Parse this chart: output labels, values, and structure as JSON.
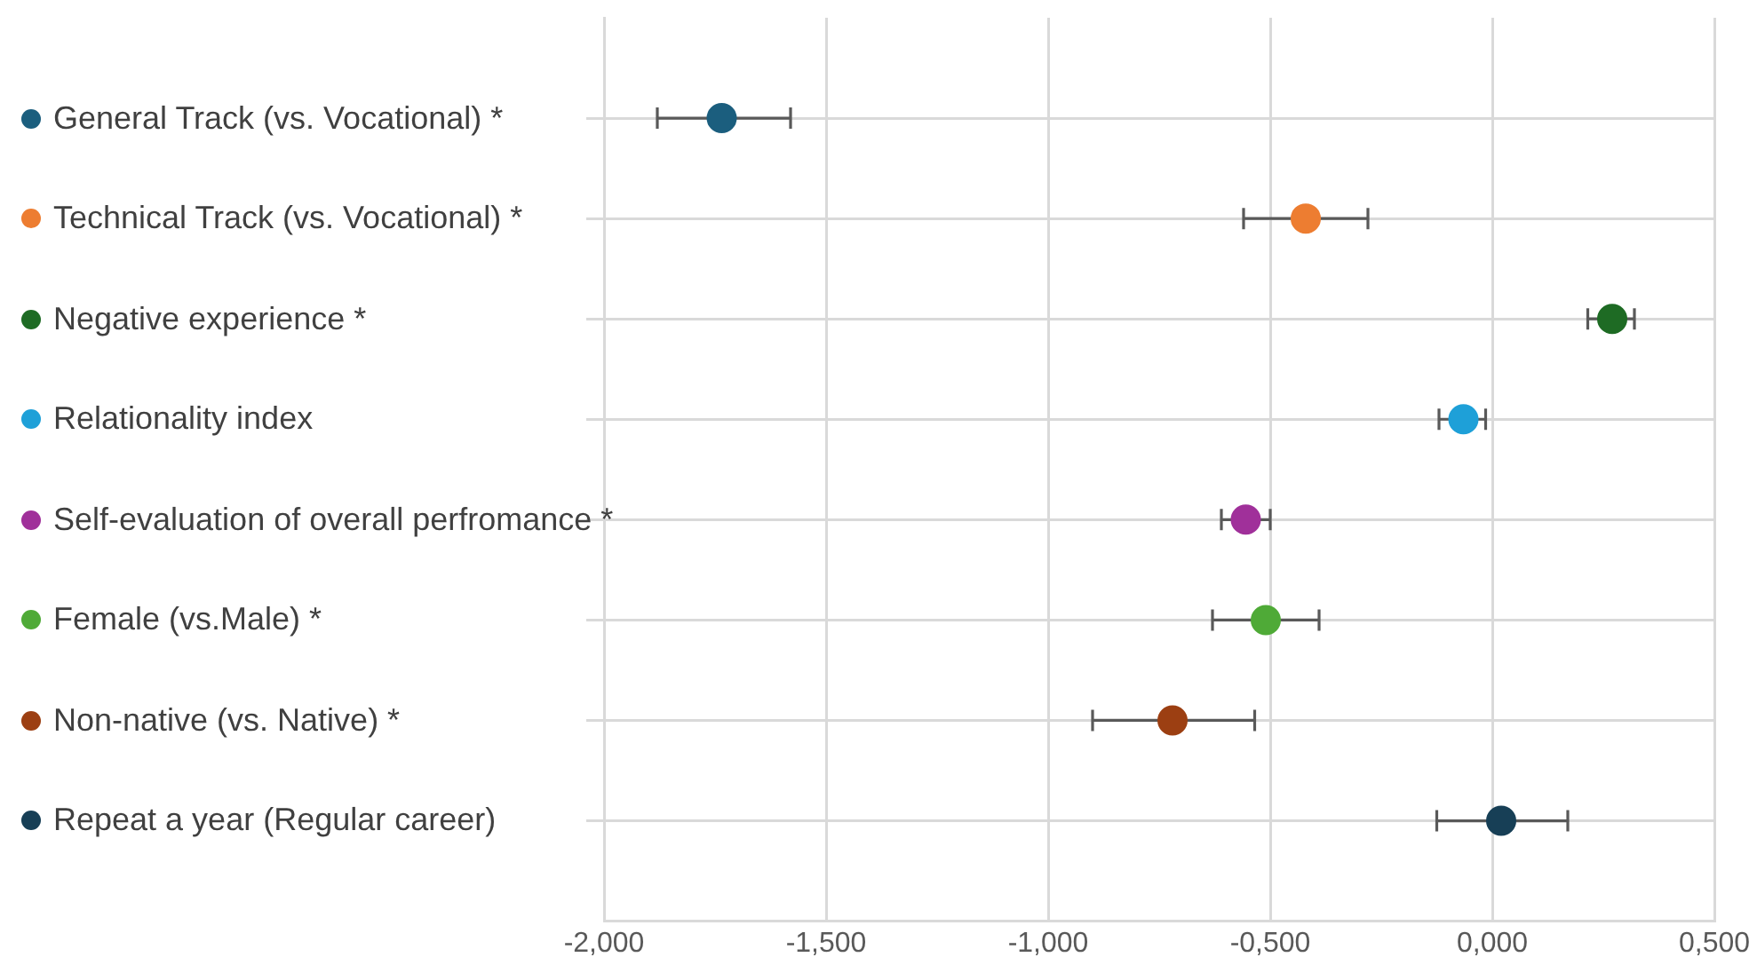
{
  "chart_data": {
    "type": "scatter",
    "orientation": "horizontal",
    "categories": [
      null,
      null,
      null,
      null,
      null,
      null,
      null,
      null
    ],
    "xlim": [
      -2,
      0.5
    ],
    "xticks": [
      {
        "value": -2,
        "label": "-2,000"
      },
      {
        "value": -1.5,
        "label": "-1,500"
      },
      {
        "value": -1,
        "label": "-1,000"
      },
      {
        "value": -0.5,
        "label": "-0,500"
      },
      {
        "value": 0,
        "label": "0,000"
      },
      {
        "value": 0.5,
        "label": "0,500"
      }
    ],
    "grid": true,
    "legend": "left",
    "marker": "circle",
    "series": [
      {
        "name": "General Track (vs. Vocational) *",
        "color": "#1b5e7e",
        "values": [
          -1.735,
          null,
          null,
          null,
          null,
          null,
          null,
          null
        ],
        "errors": [
          [
            -1.88,
            -1.58
          ],
          null,
          null,
          null,
          null,
          null,
          null,
          null
        ]
      },
      {
        "name": "Technical Track (vs. Vocational) *",
        "color": "#ed7d31",
        "values": [
          null,
          -0.42,
          null,
          null,
          null,
          null,
          null,
          null
        ],
        "errors": [
          null,
          [
            -0.56,
            -0.28
          ],
          null,
          null,
          null,
          null,
          null,
          null
        ]
      },
      {
        "name": "Negative experience *",
        "color": "#1e6b24",
        "values": [
          null,
          null,
          0.27,
          null,
          null,
          null,
          null,
          null
        ],
        "errors": [
          null,
          null,
          [
            0.215,
            0.32
          ],
          null,
          null,
          null,
          null,
          null
        ]
      },
      {
        "name": "Relationality index",
        "color": "#1ea0d8",
        "values": [
          null,
          null,
          null,
          -0.065,
          null,
          null,
          null,
          null
        ],
        "errors": [
          null,
          null,
          null,
          [
            -0.12,
            -0.015
          ],
          null,
          null,
          null,
          null
        ]
      },
      {
        "name": "Self-evaluation of overall perfromance *",
        "color": "#a0309a",
        "values": [
          null,
          null,
          null,
          null,
          -0.555,
          null,
          null,
          null
        ],
        "errors": [
          null,
          null,
          null,
          null,
          [
            -0.61,
            -0.5
          ],
          null,
          null,
          null
        ]
      },
      {
        "name": "Female (vs.Male) *",
        "color": "#4faa37",
        "values": [
          null,
          null,
          null,
          null,
          null,
          -0.51,
          null,
          null
        ],
        "errors": [
          null,
          null,
          null,
          null,
          null,
          [
            -0.63,
            -0.39
          ],
          null,
          null
        ]
      },
      {
        "name": "Non-native (vs. Native) *",
        "color": "#9c3f12",
        "values": [
          null,
          null,
          null,
          null,
          null,
          null,
          -0.72,
          null
        ],
        "errors": [
          null,
          null,
          null,
          null,
          null,
          null,
          [
            -0.9,
            -0.535
          ],
          null
        ]
      },
      {
        "name": "Repeat a year (Regular career)",
        "color": "#173f56",
        "values": [
          null,
          null,
          null,
          null,
          null,
          null,
          null,
          0.02
        ],
        "errors": [
          null,
          null,
          null,
          null,
          null,
          null,
          null,
          [
            -0.125,
            0.17
          ]
        ]
      }
    ]
  }
}
